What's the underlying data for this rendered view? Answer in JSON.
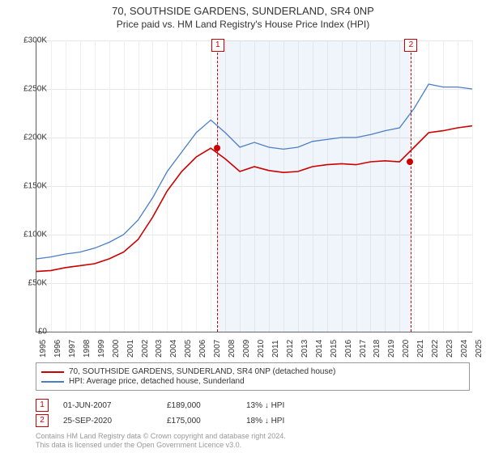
{
  "title": "70, SOUTHSIDE GARDENS, SUNDERLAND, SR4 0NP",
  "subtitle": "Price paid vs. HM Land Registry's House Price Index (HPI)",
  "chart": {
    "type": "line",
    "background_color": "#ffffff",
    "grid_color": "#e6e6e6",
    "axis_color": "#666666",
    "label_fontsize": 10,
    "title_fontsize": 13,
    "x_years": [
      1995,
      1996,
      1997,
      1998,
      1999,
      2000,
      2001,
      2002,
      2003,
      2004,
      2005,
      2006,
      2007,
      2008,
      2009,
      2010,
      2011,
      2012,
      2013,
      2014,
      2015,
      2016,
      2017,
      2018,
      2019,
      2020,
      2021,
      2022,
      2023,
      2024,
      2025
    ],
    "xlim": [
      1995,
      2025
    ],
    "ylim": [
      0,
      300000
    ],
    "ytick_step": 50000,
    "y_tick_labels": [
      "£0",
      "£50K",
      "£100K",
      "£150K",
      "£200K",
      "£250K",
      "£300K"
    ],
    "shaded_region": {
      "x_start": 2007.42,
      "x_end": 2020.73,
      "fill": "rgba(70,130,200,0.08)",
      "dash_color": "#cc0000"
    },
    "marker_boxes": [
      {
        "label": "1",
        "x": 2007.42
      },
      {
        "label": "2",
        "x": 2020.73
      }
    ],
    "sale_points": [
      {
        "x": 2007.42,
        "y": 189000,
        "color": "#cc0000"
      },
      {
        "x": 2020.73,
        "y": 175000,
        "color": "#cc0000"
      }
    ],
    "series": [
      {
        "name": "price_paid",
        "label": "70, SOUTHSIDE GARDENS, SUNDERLAND, SR4 0NP (detached house)",
        "color": "#cc0000",
        "line_width": 1.6,
        "points": [
          [
            1995,
            62000
          ],
          [
            1996,
            63000
          ],
          [
            1997,
            66000
          ],
          [
            1998,
            68000
          ],
          [
            1999,
            70000
          ],
          [
            2000,
            75000
          ],
          [
            2001,
            82000
          ],
          [
            2002,
            95000
          ],
          [
            2003,
            118000
          ],
          [
            2004,
            145000
          ],
          [
            2005,
            165000
          ],
          [
            2006,
            180000
          ],
          [
            2007,
            189000
          ],
          [
            2008,
            178000
          ],
          [
            2009,
            165000
          ],
          [
            2010,
            170000
          ],
          [
            2011,
            166000
          ],
          [
            2012,
            164000
          ],
          [
            2013,
            165000
          ],
          [
            2014,
            170000
          ],
          [
            2015,
            172000
          ],
          [
            2016,
            173000
          ],
          [
            2017,
            172000
          ],
          [
            2018,
            175000
          ],
          [
            2019,
            176000
          ],
          [
            2020,
            175000
          ],
          [
            2021,
            190000
          ],
          [
            2022,
            205000
          ],
          [
            2023,
            207000
          ],
          [
            2024,
            210000
          ],
          [
            2025,
            212000
          ]
        ]
      },
      {
        "name": "hpi",
        "label": "HPI: Average price, detached house, Sunderland",
        "color": "#4a7ec8",
        "line_width": 1.3,
        "points": [
          [
            1995,
            75000
          ],
          [
            1996,
            77000
          ],
          [
            1997,
            80000
          ],
          [
            1998,
            82000
          ],
          [
            1999,
            86000
          ],
          [
            2000,
            92000
          ],
          [
            2001,
            100000
          ],
          [
            2002,
            115000
          ],
          [
            2003,
            138000
          ],
          [
            2004,
            165000
          ],
          [
            2005,
            185000
          ],
          [
            2006,
            205000
          ],
          [
            2007,
            218000
          ],
          [
            2008,
            205000
          ],
          [
            2009,
            190000
          ],
          [
            2010,
            195000
          ],
          [
            2011,
            190000
          ],
          [
            2012,
            188000
          ],
          [
            2013,
            190000
          ],
          [
            2014,
            196000
          ],
          [
            2015,
            198000
          ],
          [
            2016,
            200000
          ],
          [
            2017,
            200000
          ],
          [
            2018,
            203000
          ],
          [
            2019,
            207000
          ],
          [
            2020,
            210000
          ],
          [
            2021,
            230000
          ],
          [
            2022,
            255000
          ],
          [
            2023,
            252000
          ],
          [
            2024,
            252000
          ],
          [
            2025,
            250000
          ]
        ]
      }
    ]
  },
  "legend": {
    "items": [
      {
        "color": "#cc0000",
        "label": "70, SOUTHSIDE GARDENS, SUNDERLAND, SR4 0NP (detached house)"
      },
      {
        "color": "#4a7ec8",
        "label": "HPI: Average price, detached house, Sunderland"
      }
    ]
  },
  "sales": [
    {
      "marker": "1",
      "date": "01-JUN-2007",
      "price": "£189,000",
      "delta": "13% ↓ HPI"
    },
    {
      "marker": "2",
      "date": "25-SEP-2020",
      "price": "£175,000",
      "delta": "18% ↓ HPI"
    }
  ],
  "footer_line1": "Contains HM Land Registry data © Crown copyright and database right 2024.",
  "footer_line2": "This data is licensed under the Open Government Licence v3.0."
}
